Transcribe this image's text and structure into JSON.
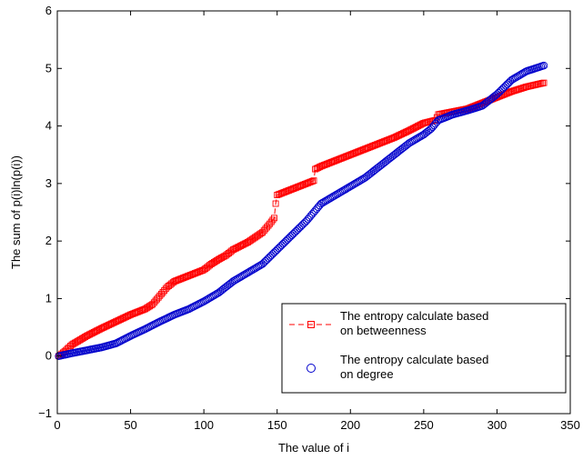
{
  "chart_data": {
    "type": "scatter",
    "title": "",
    "xlabel": "The value of i",
    "ylabel": "The sum of p(i)ln(p(i))",
    "xlim": [
      0,
      350
    ],
    "ylim": [
      -1,
      6
    ],
    "xticks": [
      "0",
      "50",
      "100",
      "150",
      "200",
      "250",
      "300",
      "350"
    ],
    "yticks": [
      "−1",
      "0",
      "1",
      "2",
      "3",
      "4",
      "5",
      "6"
    ],
    "grid": false,
    "legend_position": "bottom-right",
    "series": [
      {
        "name_lines": [
          "The entropy calculate based",
          "on betweenness"
        ],
        "marker": "square",
        "line_style": "dashed",
        "color": "#ff0000",
        "points": [
          [
            1,
            0.0
          ],
          [
            5,
            0.08
          ],
          [
            10,
            0.2
          ],
          [
            20,
            0.35
          ],
          [
            30,
            0.48
          ],
          [
            40,
            0.6
          ],
          [
            50,
            0.72
          ],
          [
            60,
            0.82
          ],
          [
            65,
            0.9
          ],
          [
            70,
            1.05
          ],
          [
            75,
            1.2
          ],
          [
            80,
            1.3
          ],
          [
            90,
            1.4
          ],
          [
            100,
            1.5
          ],
          [
            105,
            1.6
          ],
          [
            110,
            1.68
          ],
          [
            115,
            1.75
          ],
          [
            120,
            1.85
          ],
          [
            130,
            1.98
          ],
          [
            140,
            2.15
          ],
          [
            145,
            2.3
          ],
          [
            148,
            2.4
          ],
          [
            149,
            2.65
          ],
          [
            150,
            2.8
          ],
          [
            152,
            2.82
          ],
          [
            160,
            2.9
          ],
          [
            170,
            3.0
          ],
          [
            175,
            3.05
          ],
          [
            176,
            3.25
          ],
          [
            180,
            3.3
          ],
          [
            190,
            3.4
          ],
          [
            200,
            3.5
          ],
          [
            210,
            3.6
          ],
          [
            220,
            3.7
          ],
          [
            230,
            3.8
          ],
          [
            240,
            3.92
          ],
          [
            250,
            4.05
          ],
          [
            258,
            4.1
          ],
          [
            260,
            4.2
          ],
          [
            270,
            4.25
          ],
          [
            280,
            4.3
          ],
          [
            290,
            4.4
          ],
          [
            300,
            4.5
          ],
          [
            310,
            4.6
          ],
          [
            320,
            4.68
          ],
          [
            332,
            4.75
          ]
        ]
      },
      {
        "name_lines": [
          "The entropy calculate based",
          "on degree"
        ],
        "marker": "circle",
        "line_style": "none",
        "color": "#0000cc",
        "points": [
          [
            1,
            0.0
          ],
          [
            10,
            0.05
          ],
          [
            20,
            0.1
          ],
          [
            30,
            0.15
          ],
          [
            40,
            0.22
          ],
          [
            50,
            0.35
          ],
          [
            60,
            0.47
          ],
          [
            70,
            0.6
          ],
          [
            80,
            0.72
          ],
          [
            90,
            0.82
          ],
          [
            100,
            0.95
          ],
          [
            110,
            1.1
          ],
          [
            120,
            1.3
          ],
          [
            130,
            1.45
          ],
          [
            140,
            1.6
          ],
          [
            150,
            1.85
          ],
          [
            160,
            2.1
          ],
          [
            170,
            2.35
          ],
          [
            175,
            2.5
          ],
          [
            180,
            2.65
          ],
          [
            190,
            2.8
          ],
          [
            200,
            2.95
          ],
          [
            210,
            3.1
          ],
          [
            220,
            3.3
          ],
          [
            230,
            3.5
          ],
          [
            240,
            3.7
          ],
          [
            250,
            3.85
          ],
          [
            255,
            3.95
          ],
          [
            260,
            4.1
          ],
          [
            270,
            4.2
          ],
          [
            280,
            4.27
          ],
          [
            290,
            4.35
          ],
          [
            300,
            4.55
          ],
          [
            310,
            4.8
          ],
          [
            320,
            4.95
          ],
          [
            332,
            5.05
          ]
        ]
      }
    ]
  }
}
